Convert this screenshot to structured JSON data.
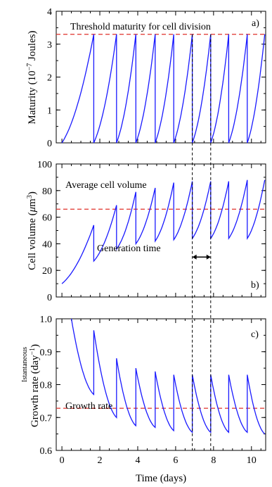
{
  "chart_data": [
    {
      "type": "line",
      "panel": "a)",
      "ylabel": "Maturity (10⁻⁷ Joules)",
      "xlim": [
        -0.3,
        10.75
      ],
      "ylim": [
        0,
        4
      ],
      "yticks": [
        0,
        1,
        2,
        3,
        4
      ],
      "xticks": [
        0,
        2,
        4,
        6,
        8,
        10
      ],
      "threshold": {
        "value": 3.3,
        "label": "Threshold maturity for cell division",
        "color": "#e0302a"
      },
      "series": [
        {
          "color": "#1a1aff",
          "curve": "convex",
          "x": [
            0,
            1.68,
            1.68,
            2.88,
            2.88,
            3.9,
            3.9,
            4.92,
            4.92,
            5.9,
            5.9,
            6.88,
            6.88,
            7.85,
            7.85,
            8.8,
            8.8,
            9.78,
            9.78,
            10.7
          ],
          "y": [
            0,
            3.3,
            0,
            3.3,
            0,
            3.3,
            0,
            3.3,
            0,
            3.3,
            0,
            3.3,
            0,
            3.3,
            0,
            3.3,
            0,
            3.3,
            0,
            3.3
          ]
        }
      ]
    },
    {
      "type": "line",
      "panel": "b)",
      "ylabel": "Cell volume (μm³)",
      "xlim": [
        -0.3,
        10.75
      ],
      "ylim": [
        0,
        100
      ],
      "yticks": [
        0,
        20,
        40,
        60,
        80,
        100
      ],
      "xticks": [
        0,
        2,
        4,
        6,
        8,
        10
      ],
      "average": {
        "value": 66,
        "label": "Average cell volume",
        "color": "#e0302a"
      },
      "annotation": {
        "text": "Generation time",
        "x_from": 6.88,
        "x_to": 7.85,
        "y": 30
      },
      "series": [
        {
          "color": "#1a1aff",
          "curve": "convex",
          "x": [
            0,
            1.68,
            1.68,
            2.88,
            2.88,
            3.9,
            3.9,
            4.92,
            4.92,
            5.9,
            5.9,
            6.88,
            6.88,
            7.85,
            7.85,
            8.8,
            8.8,
            9.78,
            9.78,
            10.7
          ],
          "y": [
            10,
            54,
            27,
            69,
            36,
            79,
            40,
            82,
            42,
            86,
            43,
            87,
            44,
            87,
            44,
            87,
            44,
            88,
            44,
            88
          ]
        }
      ]
    },
    {
      "type": "line",
      "panel": "c)",
      "ylabel": "Growth rate (day⁻¹)",
      "ylabel_small": "Istantaneous",
      "xlabel": "Time (days)",
      "xlim": [
        -0.3,
        10.75
      ],
      "ylim": [
        0.6,
        1.0
      ],
      "yticks": [
        0.6,
        0.7,
        0.8,
        0.9,
        1.0
      ],
      "ytick_labels": [
        "0.6",
        "0.7",
        "0.8",
        "0.9",
        "1.0"
      ],
      "xticks": [
        0,
        2,
        4,
        6,
        8,
        10
      ],
      "average": {
        "value": 0.728,
        "label": "Growth rate",
        "color": "#e0302a"
      },
      "series": [
        {
          "color": "#1a1aff",
          "curve": "convex",
          "clip_top": 1.0,
          "x": [
            0.5,
            1.68,
            1.68,
            2.88,
            2.88,
            3.9,
            3.9,
            4.92,
            4.92,
            5.9,
            5.9,
            6.88,
            6.88,
            7.85,
            7.85,
            8.8,
            8.8,
            9.78,
            9.78,
            10.7
          ],
          "y": [
            1.0,
            0.77,
            0.965,
            0.7,
            0.88,
            0.675,
            0.85,
            0.67,
            0.84,
            0.66,
            0.83,
            0.655,
            0.83,
            0.655,
            0.83,
            0.655,
            0.83,
            0.655,
            0.83,
            0.65
          ]
        }
      ]
    }
  ],
  "shared": {
    "dashed_markers_x": [
      6.88,
      7.85
    ],
    "xtick_labels": [
      "0",
      "2",
      "4",
      "6",
      "8",
      "10"
    ]
  }
}
